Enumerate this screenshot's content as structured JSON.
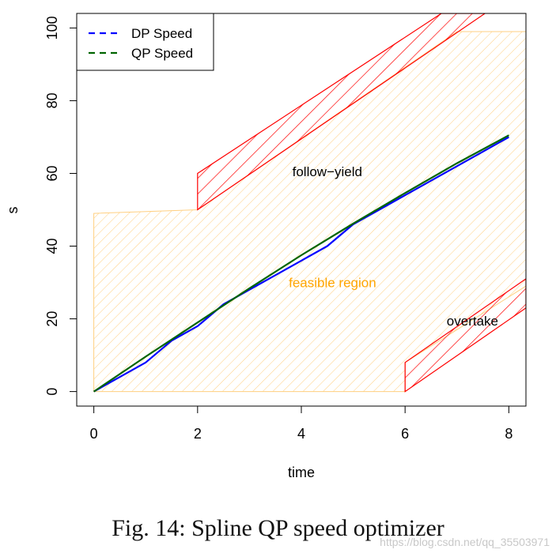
{
  "chart_data": {
    "type": "line",
    "title": "",
    "xlabel": "time",
    "ylabel": "s",
    "xlim": [
      -0.33,
      8.33
    ],
    "ylim": [
      -4,
      104
    ],
    "x_ticks": [
      0,
      2,
      4,
      6,
      8
    ],
    "y_ticks": [
      0,
      20,
      40,
      60,
      80,
      100
    ],
    "grid": false,
    "legend": {
      "position": "top-left"
    },
    "series": [
      {
        "name": "DP Speed",
        "color": "#0000ff",
        "dash": "dashed-in-legend",
        "x": [
          0,
          1,
          1.5,
          2,
          2.5,
          3,
          3.5,
          4,
          4.5,
          5,
          5.5,
          6,
          6.5,
          7,
          7.5,
          8
        ],
        "y": [
          0,
          8,
          14,
          18,
          24,
          28,
          32,
          36,
          40,
          46,
          50,
          54,
          58,
          62,
          66,
          70
        ]
      },
      {
        "name": "QP Speed",
        "color": "#006400",
        "dash": "dashed-in-legend",
        "x": [
          0,
          1,
          2,
          3,
          4,
          5,
          6,
          7,
          8
        ],
        "y": [
          0,
          9.6,
          19,
          28.4,
          37.5,
          46.2,
          54.6,
          62.8,
          70.5
        ]
      }
    ],
    "regions": [
      {
        "label": "feasible region",
        "color": "#ffa500",
        "polygon": [
          [
            0,
            0
          ],
          [
            6,
            0
          ],
          [
            6,
            8
          ],
          [
            8.33,
            29
          ],
          [
            8.33,
            99
          ],
          [
            7,
            99
          ],
          [
            2,
            50
          ],
          [
            0,
            49
          ]
        ]
      },
      {
        "label": "follow-yield",
        "color": "#ff0000",
        "polygon": [
          [
            2,
            50
          ],
          [
            2,
            60
          ],
          [
            6.7,
            104
          ],
          [
            7.54,
            104
          ],
          [
            2,
            50
          ]
        ]
      },
      {
        "label": "overtake",
        "color": "#ff0000",
        "polygon": [
          [
            6,
            0
          ],
          [
            6,
            8
          ],
          [
            8.33,
            31
          ],
          [
            8.33,
            23
          ]
        ]
      }
    ],
    "annotations": [
      {
        "text": "follow−yield",
        "x": 4.5,
        "y": 60.5,
        "color": "#000000"
      },
      {
        "text": "feasible region",
        "x": 4.6,
        "y": 30,
        "color": "#ffa500"
      },
      {
        "text": "overtake",
        "x": 7.3,
        "y": 19.5,
        "color": "#000000"
      }
    ]
  },
  "caption": "Fig. 14: Spline QP speed optimizer",
  "watermark": "https://blog.csdn.net/qq_35503971"
}
